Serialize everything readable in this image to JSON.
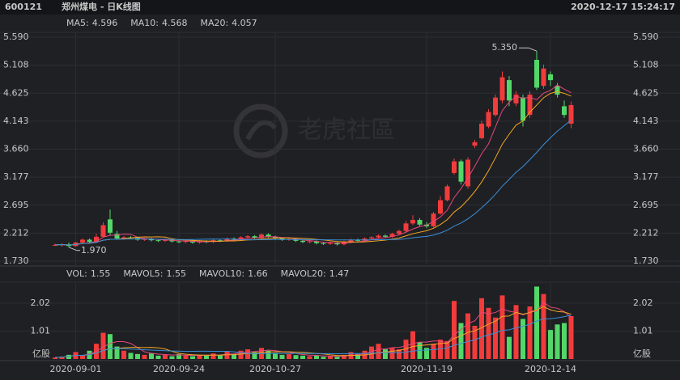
{
  "chart_data": {
    "type": "candlestick",
    "header": {
      "code": "600121",
      "title": "郑州煤电 - 日K线图",
      "datetime": "2020-12-17 15:24:17"
    },
    "watermark": "老虎社區",
    "ma_legend": [
      {
        "name": "MA5:",
        "value": 4.596,
        "color": "#e8467c"
      },
      {
        "name": "MA10:",
        "value": 4.568,
        "color": "#f5a623"
      },
      {
        "name": "MA20:",
        "value": 4.057,
        "color": "#3a8fd9"
      }
    ],
    "vol_legend": [
      {
        "name": "VOL:",
        "value": 1.55,
        "color": "#cccccc"
      },
      {
        "name": "MAVOL5:",
        "value": 1.55,
        "color": "#e8467c"
      },
      {
        "name": "MAVOL10:",
        "value": 1.66,
        "color": "#f5a623"
      },
      {
        "name": "MAVOL20:",
        "value": 1.47,
        "color": "#3a8fd9"
      }
    ],
    "up_color": "#f23b3b",
    "down_color": "#53d769",
    "categories": [
      null,
      null,
      null,
      "2020-09-01",
      null,
      null,
      null,
      null,
      null,
      null,
      null,
      null,
      null,
      null,
      null,
      null,
      null,
      null,
      "2020-09-24",
      null,
      null,
      null,
      null,
      null,
      null,
      null,
      null,
      null,
      null,
      null,
      null,
      null,
      "2020-10-27",
      null,
      null,
      null,
      null,
      null,
      null,
      null,
      null,
      null,
      null,
      null,
      null,
      null,
      null,
      null,
      null,
      null,
      null,
      null,
      null,
      null,
      "2020-11-19",
      null,
      null,
      null,
      null,
      null,
      null,
      null,
      null,
      null,
      null,
      null,
      null,
      null,
      null,
      null,
      null,
      null,
      "2020-12-14",
      null,
      null,
      null
    ],
    "open": [
      2.0,
      2.01,
      2.02,
      1.99,
      2.05,
      2.1,
      2.06,
      2.15,
      2.45,
      2.2,
      2.12,
      2.14,
      2.13,
      2.1,
      2.11,
      2.09,
      2.08,
      2.1,
      2.07,
      2.06,
      2.08,
      2.05,
      2.07,
      2.06,
      2.09,
      2.08,
      2.12,
      2.1,
      2.14,
      2.16,
      2.13,
      2.19,
      2.15,
      2.12,
      2.1,
      2.11,
      2.08,
      2.06,
      2.07,
      2.04,
      2.03,
      2.05,
      2.02,
      2.06,
      2.1,
      2.08,
      2.12,
      2.14,
      2.17,
      2.15,
      2.2,
      2.25,
      2.38,
      2.44,
      2.36,
      2.33,
      2.55,
      2.78,
      3.25,
      3.45,
      3.02,
      3.72,
      3.85,
      4.05,
      4.25,
      4.5,
      4.85,
      4.45,
      4.55,
      4.25,
      5.2,
      4.75,
      4.95,
      4.75,
      4.4,
      4.1
    ],
    "high": [
      2.03,
      2.04,
      2.05,
      2.06,
      2.12,
      2.12,
      2.2,
      2.4,
      2.62,
      2.25,
      2.16,
      2.16,
      2.15,
      2.13,
      2.13,
      2.11,
      2.12,
      2.12,
      2.09,
      2.1,
      2.1,
      2.09,
      2.09,
      2.11,
      2.11,
      2.14,
      2.14,
      2.16,
      2.18,
      2.18,
      2.21,
      2.21,
      2.17,
      2.14,
      2.13,
      2.13,
      2.1,
      2.09,
      2.09,
      2.06,
      2.07,
      2.07,
      2.08,
      2.12,
      2.12,
      2.14,
      2.16,
      2.19,
      2.19,
      2.22,
      2.27,
      2.42,
      2.52,
      2.47,
      2.4,
      2.58,
      2.85,
      3.05,
      3.5,
      3.48,
      3.52,
      3.82,
      4.15,
      4.35,
      4.6,
      5.0,
      4.92,
      4.66,
      4.6,
      4.66,
      5.35,
      5.12,
      5.0,
      4.8,
      4.5,
      4.48
    ],
    "low": [
      1.99,
      1.98,
      1.97,
      1.98,
      2.03,
      2.04,
      2.05,
      2.14,
      2.18,
      2.1,
      2.1,
      2.11,
      2.08,
      2.08,
      2.07,
      2.06,
      2.06,
      2.05,
      2.04,
      2.04,
      2.03,
      2.03,
      2.04,
      2.04,
      2.06,
      2.06,
      2.08,
      2.08,
      2.12,
      2.11,
      2.11,
      2.13,
      2.1,
      2.08,
      2.08,
      2.06,
      2.04,
      2.04,
      2.02,
      2.01,
      2.01,
      2.0,
      2.0,
      2.04,
      2.06,
      2.06,
      2.1,
      2.12,
      2.13,
      2.13,
      2.18,
      2.23,
      2.35,
      2.33,
      2.3,
      2.31,
      2.53,
      2.76,
      3.22,
      3.05,
      2.98,
      3.68,
      3.83,
      4.02,
      4.22,
      4.45,
      4.4,
      4.4,
      4.05,
      4.2,
      4.68,
      4.7,
      4.75,
      4.55,
      4.2,
      4.02
    ],
    "close": [
      2.01,
      2.02,
      1.99,
      2.05,
      2.1,
      2.06,
      2.15,
      2.35,
      2.22,
      2.12,
      2.14,
      2.13,
      2.1,
      2.11,
      2.09,
      2.08,
      2.1,
      2.07,
      2.06,
      2.08,
      2.05,
      2.07,
      2.06,
      2.09,
      2.08,
      2.12,
      2.1,
      2.14,
      2.16,
      2.13,
      2.19,
      2.15,
      2.12,
      2.1,
      2.11,
      2.08,
      2.06,
      2.07,
      2.04,
      2.03,
      2.05,
      2.02,
      2.06,
      2.1,
      2.08,
      2.12,
      2.14,
      2.17,
      2.15,
      2.2,
      2.25,
      2.38,
      2.44,
      2.36,
      2.33,
      2.55,
      2.78,
      3.02,
      3.45,
      3.1,
      3.48,
      3.78,
      4.1,
      4.3,
      4.55,
      4.9,
      4.5,
      4.6,
      4.15,
      4.6,
      4.72,
      5.05,
      4.85,
      4.6,
      4.25,
      4.42
    ],
    "volume": [
      0.05,
      0.08,
      0.15,
      0.25,
      0.12,
      0.3,
      0.55,
      0.95,
      0.9,
      0.45,
      0.3,
      0.22,
      0.18,
      0.15,
      0.2,
      0.12,
      0.15,
      0.1,
      0.18,
      0.12,
      0.1,
      0.14,
      0.12,
      0.2,
      0.15,
      0.28,
      0.18,
      0.3,
      0.35,
      0.25,
      0.4,
      0.3,
      0.22,
      0.15,
      0.18,
      0.14,
      0.12,
      0.1,
      0.12,
      0.08,
      0.1,
      0.08,
      0.15,
      0.25,
      0.18,
      0.3,
      0.45,
      0.55,
      0.35,
      0.4,
      0.35,
      0.7,
      1.0,
      0.6,
      0.4,
      0.55,
      0.7,
      0.65,
      2.1,
      1.3,
      1.65,
      1.2,
      2.2,
      1.85,
      1.5,
      2.3,
      0.8,
      1.95,
      1.45,
      1.9,
      2.62,
      2.35,
      1.05,
      1.25,
      1.3,
      1.55
    ],
    "annotations": [
      {
        "value": 5.35,
        "label": "5.350"
      },
      {
        "value": 1.97,
        "label": "1.970"
      }
    ],
    "ylim": [
      1.73,
      5.59
    ],
    "yticks": [
      {
        "value": 1.73,
        "label": "1.730"
      },
      2.212,
      2.695,
      3.177,
      {
        "value": 3.66,
        "label": "3.660"
      },
      4.143,
      4.625,
      5.108,
      {
        "value": 5.59,
        "label": "5.590"
      }
    ],
    "vol_ylim": [
      0,
      2.75
    ],
    "vol_yticks": [
      {
        "value": 0,
        "label": "亿股"
      },
      1.01,
      2.02
    ],
    "grid": true
  }
}
